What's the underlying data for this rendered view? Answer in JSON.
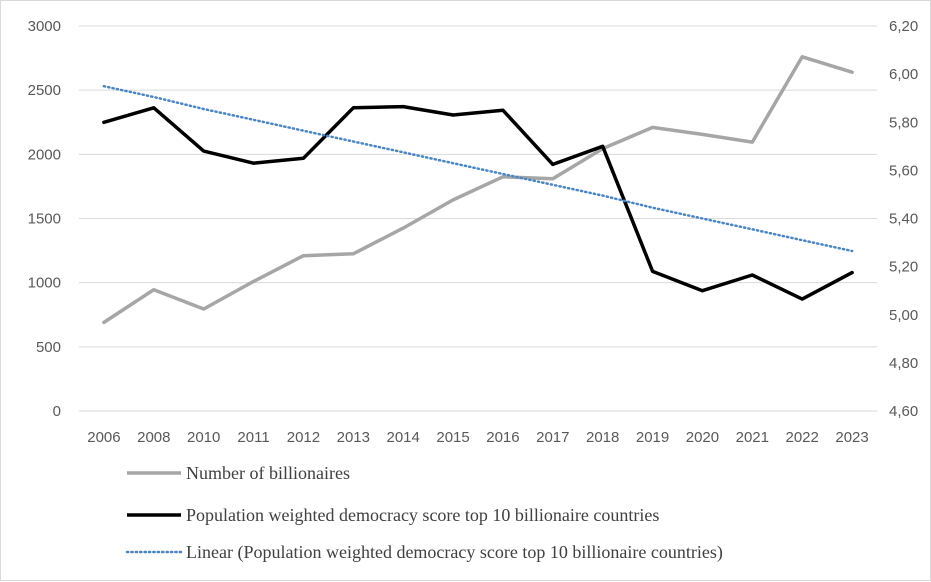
{
  "chart_data": {
    "type": "line",
    "categories": [
      "2006",
      "2008",
      "2010",
      "2011",
      "2012",
      "2013",
      "2014",
      "2015",
      "2016",
      "2017",
      "2018",
      "2019",
      "2020",
      "2021",
      "2022",
      "2023"
    ],
    "series": [
      {
        "name": "Number of billionaires",
        "axis": "left",
        "color": "#a6a6a6",
        "values": [
          690,
          945,
          795,
          1010,
          1210,
          1225,
          1425,
          1645,
          1825,
          1810,
          2045,
          2210,
          2155,
          2095,
          2760,
          2640
        ]
      },
      {
        "name": "Population weighted democracy score top 10 billionaire countries",
        "axis": "right",
        "color": "#000000",
        "values": [
          5.8,
          5.86,
          5.68,
          5.63,
          5.65,
          5.86,
          5.865,
          5.83,
          5.85,
          5.625,
          5.7,
          5.18,
          5.1,
          5.165,
          5.065,
          5.175
        ]
      },
      {
        "name": "Linear (Population weighted democracy score top 10 billionaire countries)",
        "axis": "right",
        "color": "#4a86c5",
        "style": "dotted",
        "values": [
          5.95,
          5.905,
          5.855,
          5.81,
          5.765,
          5.72,
          5.675,
          5.63,
          5.585,
          5.54,
          5.495,
          5.445,
          5.4,
          5.355,
          5.31,
          5.265
        ]
      }
    ],
    "left_axis": {
      "ylim": [
        0,
        3000
      ],
      "ticks": [
        "0",
        "500",
        "1000",
        "1500",
        "2000",
        "2500",
        "3000"
      ]
    },
    "right_axis": {
      "ylim": [
        4.6,
        6.2
      ],
      "ticks": [
        "4,60",
        "4,80",
        "5,00",
        "5,20",
        "5,40",
        "5,60",
        "5,80",
        "6,00",
        "6,20"
      ]
    },
    "grid": "horizontal",
    "legend_position": "bottom"
  }
}
